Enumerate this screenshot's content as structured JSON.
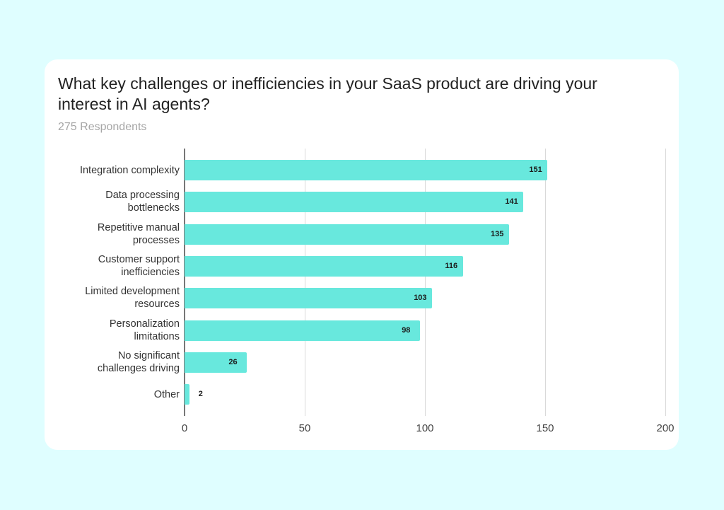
{
  "header": {
    "title": "What key challenges or inefficiencies in your SaaS product are driving your interest in AI agents?",
    "subtitle": "275 Respondents"
  },
  "colors": {
    "background": "#dffeff",
    "card": "#ffffff",
    "bar": "#68e8dd",
    "grid": "#d9d9d9"
  },
  "chart_data": {
    "type": "bar",
    "orientation": "horizontal",
    "title": "What key challenges or inefficiencies in your SaaS product are driving your interest in AI agents?",
    "subtitle": "275 Respondents",
    "categories": [
      "Integration complexity",
      "Data processing bottlenecks",
      "Repetitive manual processes",
      "Customer support inefficiencies",
      "Limited development resources",
      "Personalization limitations",
      "No significant challenges driving",
      "Other"
    ],
    "values": [
      151,
      141,
      135,
      116,
      103,
      98,
      26,
      2
    ],
    "xlabel": "",
    "ylabel": "",
    "xlim": [
      0,
      200
    ],
    "xticks": [
      "0",
      "50",
      "100",
      "150",
      "200"
    ],
    "grid": true,
    "legend": null,
    "data_labels": true
  },
  "rows": [
    {
      "line1": "Integration complexity",
      "line2": "",
      "value": "151"
    },
    {
      "line1": "Data processing",
      "line2": "bottlenecks",
      "value": "141"
    },
    {
      "line1": "Repetitive manual",
      "line2": "processes",
      "value": "135"
    },
    {
      "line1": "Customer support",
      "line2": "inefficiencies",
      "value": "116"
    },
    {
      "line1": "Limited development",
      "line2": "resources",
      "value": "103"
    },
    {
      "line1": "Personalization",
      "line2": "limitations",
      "value": "98"
    },
    {
      "line1": "No significant",
      "line2": "challenges driving",
      "value": "26"
    },
    {
      "line1": "Other",
      "line2": "",
      "value": "2"
    }
  ],
  "axis": {
    "ticks": [
      "0",
      "50",
      "100",
      "150",
      "200"
    ]
  }
}
